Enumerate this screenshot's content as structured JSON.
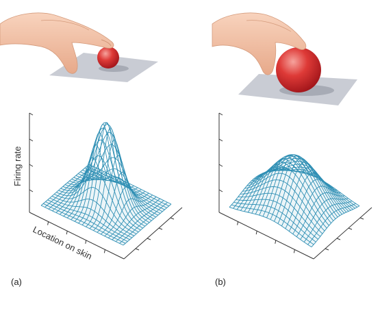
{
  "figure": {
    "panel_a": {
      "label": "(a)"
    },
    "panel_b": {
      "label": "(b)"
    },
    "y_axis_label": "Firing rate",
    "x_axis_label": "Location on skin"
  },
  "stimulus": {
    "small_ball": {
      "size": "small"
    },
    "large_ball": {
      "size": "large"
    }
  },
  "colors": {
    "mesh": "#2f8fb4",
    "mesh_dark": "#1f6f92",
    "ball": "#d9262b",
    "ball_highlight": "#f08a84",
    "plate": "#c8cbd3",
    "skin": "#f4c6a9",
    "skin_shade": "#d99c7c",
    "axis": "#333333"
  },
  "surfaces": {
    "a": {
      "shape": "narrow-peak",
      "relative_peak": 1.0,
      "relative_width": 0.35
    },
    "b": {
      "shape": "broad-hump",
      "relative_peak": 0.55,
      "relative_width": 0.75
    }
  }
}
